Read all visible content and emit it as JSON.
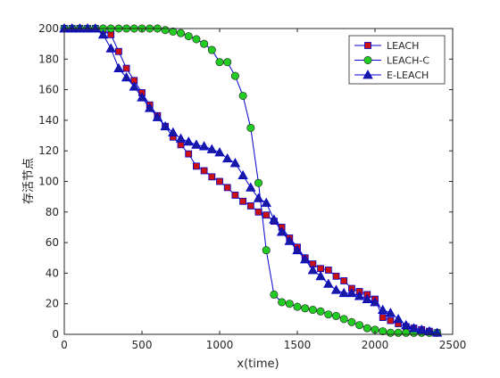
{
  "chart_data": {
    "type": "line",
    "xlabel": "x(time)",
    "ylabel": "存活节点",
    "xlim": [
      0,
      2500
    ],
    "ylim": [
      0,
      200
    ],
    "xticks": [
      0,
      500,
      1000,
      1500,
      2000,
      2500
    ],
    "yticks": [
      0,
      20,
      40,
      60,
      80,
      100,
      120,
      140,
      160,
      180,
      200
    ],
    "grid": false,
    "legend_position": "top-right",
    "series": [
      {
        "name": "LEACH",
        "marker": "square",
        "line_color": "#0000cc",
        "marker_fill": "#cc1111",
        "x": [
          0,
          50,
          100,
          150,
          200,
          250,
          300,
          350,
          400,
          450,
          500,
          550,
          600,
          650,
          700,
          750,
          800,
          850,
          900,
          950,
          1000,
          1050,
          1100,
          1150,
          1200,
          1250,
          1300,
          1350,
          1400,
          1450,
          1500,
          1550,
          1600,
          1650,
          1700,
          1750,
          1800,
          1850,
          1900,
          1950,
          2000,
          2050,
          2100,
          2150,
          2200,
          2250,
          2300,
          2350,
          2400
        ],
        "y": [
          200,
          200,
          200,
          200,
          200,
          199,
          196,
          185,
          174,
          166,
          158,
          150,
          143,
          136,
          129,
          124,
          118,
          110,
          107,
          103,
          100,
          96,
          91,
          87,
          84,
          80,
          78,
          74,
          70,
          63,
          57,
          50,
          46,
          43,
          42,
          38,
          35,
          30,
          28,
          26,
          23,
          11,
          9,
          7,
          5,
          4,
          3,
          2,
          1
        ]
      },
      {
        "name": "LEACH-C",
        "marker": "circle",
        "line_color": "#0000cc",
        "marker_fill": "#22cc22",
        "x": [
          0,
          50,
          100,
          150,
          200,
          250,
          300,
          350,
          400,
          450,
          500,
          550,
          600,
          650,
          700,
          750,
          800,
          850,
          900,
          950,
          1000,
          1050,
          1100,
          1150,
          1200,
          1250,
          1300,
          1350,
          1400,
          1450,
          1500,
          1550,
          1600,
          1650,
          1700,
          1750,
          1800,
          1850,
          1900,
          1950,
          2000,
          2050,
          2100,
          2150,
          2200,
          2250,
          2300,
          2350,
          2400
        ],
        "y": [
          200,
          200,
          200,
          200,
          200,
          200,
          200,
          200,
          200,
          200,
          200,
          200,
          200,
          199,
          198,
          197,
          195,
          193,
          190,
          186,
          178,
          178,
          169,
          156,
          135,
          99,
          55,
          26,
          21,
          20,
          18,
          17,
          16,
          15,
          13,
          12,
          10,
          8,
          6,
          4,
          3,
          2,
          1,
          1,
          1,
          1,
          1,
          1,
          1
        ]
      },
      {
        "name": "E-LEACH",
        "marker": "triangle",
        "line_color": "#0000cc",
        "marker_fill": "#1a1aa0",
        "x": [
          0,
          50,
          100,
          150,
          200,
          250,
          300,
          350,
          400,
          450,
          500,
          550,
          600,
          650,
          700,
          750,
          800,
          850,
          900,
          950,
          1000,
          1050,
          1100,
          1150,
          1200,
          1250,
          1300,
          1350,
          1400,
          1450,
          1500,
          1550,
          1600,
          1650,
          1700,
          1750,
          1800,
          1850,
          1900,
          1950,
          2000,
          2050,
          2100,
          2150,
          2200,
          2250,
          2300,
          2350,
          2400
        ],
        "y": [
          200,
          200,
          200,
          200,
          200,
          196,
          187,
          174,
          168,
          162,
          155,
          148,
          142,
          136,
          132,
          128,
          126,
          124,
          123,
          121,
          119,
          115,
          112,
          104,
          96,
          89,
          86,
          75,
          67,
          61,
          55,
          49,
          42,
          38,
          33,
          29,
          27,
          27,
          25,
          23,
          21,
          16,
          14,
          10,
          6,
          4,
          3,
          2,
          1
        ]
      }
    ]
  }
}
